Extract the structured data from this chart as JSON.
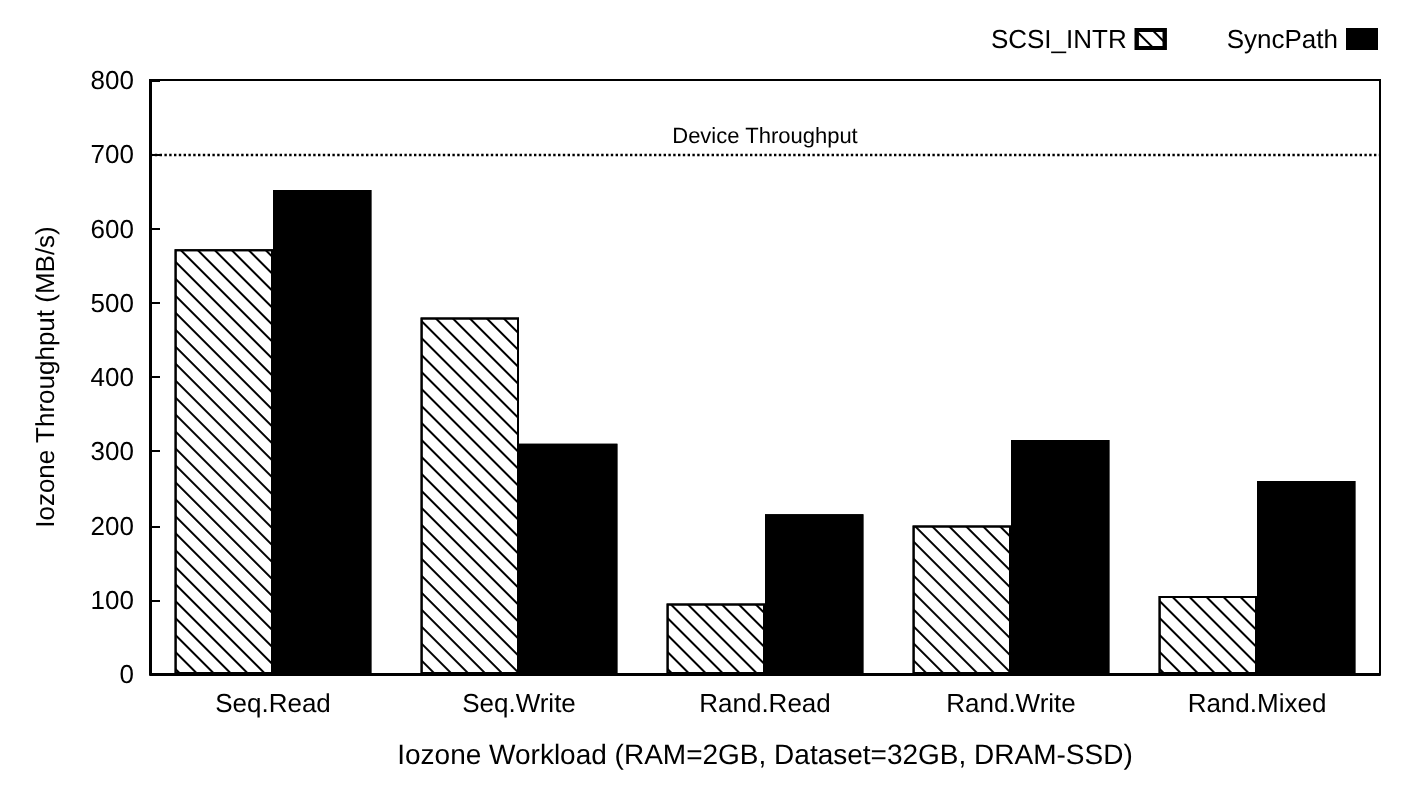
{
  "chart_data": {
    "type": "bar",
    "xlabel": "Iozone Workload (RAM=2GB, Dataset=32GB, DRAM-SSD)",
    "ylabel": "Iozone Throughput (MB/s)",
    "categories": [
      "Seq.Read",
      "Seq.Write",
      "Rand.Read",
      "Rand.Write",
      "Rand.Mixed"
    ],
    "series": [
      {
        "name": "SCSI_INTR",
        "color": "#ffffff",
        "values": [
          572,
          480,
          95,
          200,
          105
        ]
      },
      {
        "name": "SyncPath",
        "color": "#000000",
        "values": [
          652,
          310,
          215,
          315,
          260
        ]
      }
    ],
    "ylim": [
      0,
      800
    ],
    "yticks": [
      0,
      100,
      200,
      300,
      400,
      500,
      600,
      700,
      800
    ],
    "grid": false,
    "legend": "top right",
    "ref_lines": [
      {
        "axis": "y",
        "value": 700,
        "label": "Device Throughput",
        "color": "#000000",
        "line_style": "dotted"
      }
    ]
  }
}
